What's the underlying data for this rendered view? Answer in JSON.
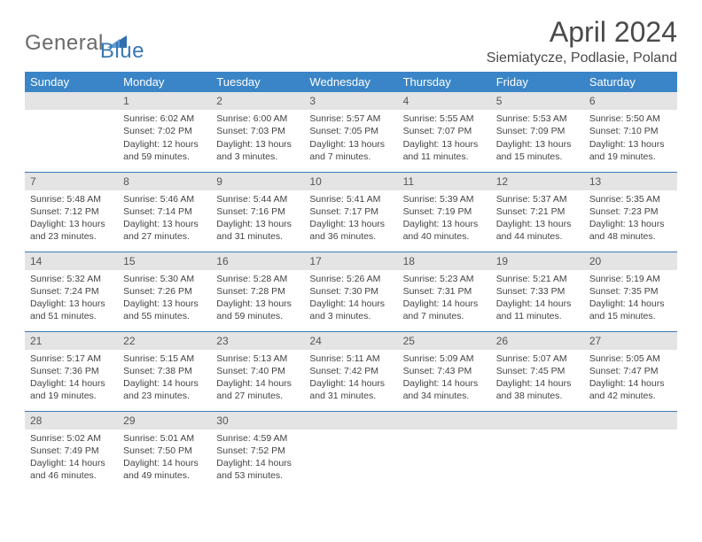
{
  "brand": {
    "text1": "General",
    "text2": "Blue",
    "shape_color": "#2f6fb0"
  },
  "header": {
    "month_title": "April 2024",
    "location": "Siemiatycze, Podlasie, Poland"
  },
  "colors": {
    "header_bg": "#3a85c7",
    "header_text": "#ffffff",
    "daynum_bg": "#e4e4e4",
    "rule": "#3a78b5",
    "body_text": "#444444"
  },
  "day_labels": [
    "Sunday",
    "Monday",
    "Tuesday",
    "Wednesday",
    "Thursday",
    "Friday",
    "Saturday"
  ],
  "typography": {
    "title_fontsize": 32,
    "location_fontsize": 16,
    "dayhead_fontsize": 13,
    "cell_fontsize": 10.5
  },
  "weeks": [
    [
      {
        "n": "",
        "sr": "",
        "ss": "",
        "d1": "",
        "d2": ""
      },
      {
        "n": "1",
        "sr": "Sunrise: 6:02 AM",
        "ss": "Sunset: 7:02 PM",
        "d1": "Daylight: 12 hours",
        "d2": "and 59 minutes."
      },
      {
        "n": "2",
        "sr": "Sunrise: 6:00 AM",
        "ss": "Sunset: 7:03 PM",
        "d1": "Daylight: 13 hours",
        "d2": "and 3 minutes."
      },
      {
        "n": "3",
        "sr": "Sunrise: 5:57 AM",
        "ss": "Sunset: 7:05 PM",
        "d1": "Daylight: 13 hours",
        "d2": "and 7 minutes."
      },
      {
        "n": "4",
        "sr": "Sunrise: 5:55 AM",
        "ss": "Sunset: 7:07 PM",
        "d1": "Daylight: 13 hours",
        "d2": "and 11 minutes."
      },
      {
        "n": "5",
        "sr": "Sunrise: 5:53 AM",
        "ss": "Sunset: 7:09 PM",
        "d1": "Daylight: 13 hours",
        "d2": "and 15 minutes."
      },
      {
        "n": "6",
        "sr": "Sunrise: 5:50 AM",
        "ss": "Sunset: 7:10 PM",
        "d1": "Daylight: 13 hours",
        "d2": "and 19 minutes."
      }
    ],
    [
      {
        "n": "7",
        "sr": "Sunrise: 5:48 AM",
        "ss": "Sunset: 7:12 PM",
        "d1": "Daylight: 13 hours",
        "d2": "and 23 minutes."
      },
      {
        "n": "8",
        "sr": "Sunrise: 5:46 AM",
        "ss": "Sunset: 7:14 PM",
        "d1": "Daylight: 13 hours",
        "d2": "and 27 minutes."
      },
      {
        "n": "9",
        "sr": "Sunrise: 5:44 AM",
        "ss": "Sunset: 7:16 PM",
        "d1": "Daylight: 13 hours",
        "d2": "and 31 minutes."
      },
      {
        "n": "10",
        "sr": "Sunrise: 5:41 AM",
        "ss": "Sunset: 7:17 PM",
        "d1": "Daylight: 13 hours",
        "d2": "and 36 minutes."
      },
      {
        "n": "11",
        "sr": "Sunrise: 5:39 AM",
        "ss": "Sunset: 7:19 PM",
        "d1": "Daylight: 13 hours",
        "d2": "and 40 minutes."
      },
      {
        "n": "12",
        "sr": "Sunrise: 5:37 AM",
        "ss": "Sunset: 7:21 PM",
        "d1": "Daylight: 13 hours",
        "d2": "and 44 minutes."
      },
      {
        "n": "13",
        "sr": "Sunrise: 5:35 AM",
        "ss": "Sunset: 7:23 PM",
        "d1": "Daylight: 13 hours",
        "d2": "and 48 minutes."
      }
    ],
    [
      {
        "n": "14",
        "sr": "Sunrise: 5:32 AM",
        "ss": "Sunset: 7:24 PM",
        "d1": "Daylight: 13 hours",
        "d2": "and 51 minutes."
      },
      {
        "n": "15",
        "sr": "Sunrise: 5:30 AM",
        "ss": "Sunset: 7:26 PM",
        "d1": "Daylight: 13 hours",
        "d2": "and 55 minutes."
      },
      {
        "n": "16",
        "sr": "Sunrise: 5:28 AM",
        "ss": "Sunset: 7:28 PM",
        "d1": "Daylight: 13 hours",
        "d2": "and 59 minutes."
      },
      {
        "n": "17",
        "sr": "Sunrise: 5:26 AM",
        "ss": "Sunset: 7:30 PM",
        "d1": "Daylight: 14 hours",
        "d2": "and 3 minutes."
      },
      {
        "n": "18",
        "sr": "Sunrise: 5:23 AM",
        "ss": "Sunset: 7:31 PM",
        "d1": "Daylight: 14 hours",
        "d2": "and 7 minutes."
      },
      {
        "n": "19",
        "sr": "Sunrise: 5:21 AM",
        "ss": "Sunset: 7:33 PM",
        "d1": "Daylight: 14 hours",
        "d2": "and 11 minutes."
      },
      {
        "n": "20",
        "sr": "Sunrise: 5:19 AM",
        "ss": "Sunset: 7:35 PM",
        "d1": "Daylight: 14 hours",
        "d2": "and 15 minutes."
      }
    ],
    [
      {
        "n": "21",
        "sr": "Sunrise: 5:17 AM",
        "ss": "Sunset: 7:36 PM",
        "d1": "Daylight: 14 hours",
        "d2": "and 19 minutes."
      },
      {
        "n": "22",
        "sr": "Sunrise: 5:15 AM",
        "ss": "Sunset: 7:38 PM",
        "d1": "Daylight: 14 hours",
        "d2": "and 23 minutes."
      },
      {
        "n": "23",
        "sr": "Sunrise: 5:13 AM",
        "ss": "Sunset: 7:40 PM",
        "d1": "Daylight: 14 hours",
        "d2": "and 27 minutes."
      },
      {
        "n": "24",
        "sr": "Sunrise: 5:11 AM",
        "ss": "Sunset: 7:42 PM",
        "d1": "Daylight: 14 hours",
        "d2": "and 31 minutes."
      },
      {
        "n": "25",
        "sr": "Sunrise: 5:09 AM",
        "ss": "Sunset: 7:43 PM",
        "d1": "Daylight: 14 hours",
        "d2": "and 34 minutes."
      },
      {
        "n": "26",
        "sr": "Sunrise: 5:07 AM",
        "ss": "Sunset: 7:45 PM",
        "d1": "Daylight: 14 hours",
        "d2": "and 38 minutes."
      },
      {
        "n": "27",
        "sr": "Sunrise: 5:05 AM",
        "ss": "Sunset: 7:47 PM",
        "d1": "Daylight: 14 hours",
        "d2": "and 42 minutes."
      }
    ],
    [
      {
        "n": "28",
        "sr": "Sunrise: 5:02 AM",
        "ss": "Sunset: 7:49 PM",
        "d1": "Daylight: 14 hours",
        "d2": "and 46 minutes."
      },
      {
        "n": "29",
        "sr": "Sunrise: 5:01 AM",
        "ss": "Sunset: 7:50 PM",
        "d1": "Daylight: 14 hours",
        "d2": "and 49 minutes."
      },
      {
        "n": "30",
        "sr": "Sunrise: 4:59 AM",
        "ss": "Sunset: 7:52 PM",
        "d1": "Daylight: 14 hours",
        "d2": "and 53 minutes."
      },
      {
        "n": "",
        "sr": "",
        "ss": "",
        "d1": "",
        "d2": ""
      },
      {
        "n": "",
        "sr": "",
        "ss": "",
        "d1": "",
        "d2": ""
      },
      {
        "n": "",
        "sr": "",
        "ss": "",
        "d1": "",
        "d2": ""
      },
      {
        "n": "",
        "sr": "",
        "ss": "",
        "d1": "",
        "d2": ""
      }
    ]
  ]
}
